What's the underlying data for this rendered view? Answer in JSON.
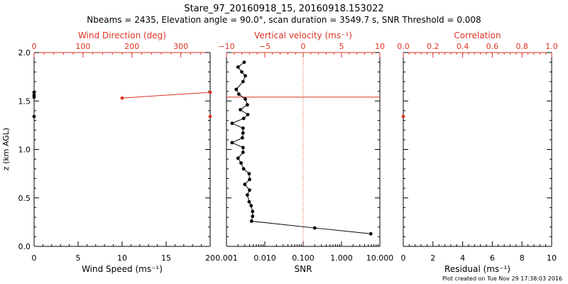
{
  "header": {
    "title": "Stare_97_20160918_15, 20160918.153022",
    "subtitle": "Nbeams = 2435, Elevation angle = 90.0°, scan duration = 3549.7 s, SNR Threshold = 0.008"
  },
  "footer": {
    "credit": "Plot created on Tue Nov 29 17:38:03 2016"
  },
  "colors": {
    "axis": "#000000",
    "accent": "#dd3322",
    "background": "#ffffff"
  },
  "chart_data": [
    {
      "type": "line",
      "title": "Wind Speed / Wind Direction",
      "xlabel": "Wind Speed (ms⁻¹)",
      "xlim": [
        0,
        20
      ],
      "xticks": [
        "0",
        "5",
        "10",
        "15",
        "20"
      ],
      "x2label": "Wind Direction (deg)",
      "x2lim": [
        0,
        360
      ],
      "x2ticks": [
        "0",
        "100",
        "200",
        "300"
      ],
      "ylabel": "z (km AGL)",
      "ylim": [
        0,
        2.0
      ],
      "yticks": [
        "0.0",
        "0.5",
        "1.0",
        "1.5",
        "2.0"
      ],
      "series": [
        {
          "name": "Wind direction",
          "color": "#dd3322",
          "x": [
            180,
            360
          ],
          "y": [
            1.53,
            1.59
          ]
        },
        {
          "name": "Wind direction (edge)",
          "color": "#dd3322",
          "x": [
            360
          ],
          "y": [
            1.34
          ]
        },
        {
          "name": "Wind speed",
          "color": "#000000",
          "x": [
            0,
            0,
            0,
            0
          ],
          "y": [
            1.59,
            1.56,
            1.54,
            1.34
          ]
        }
      ]
    },
    {
      "type": "line",
      "title": "SNR / Vertical velocity",
      "xlabel": "SNR",
      "xscale": "log",
      "xlim": [
        0.001,
        10
      ],
      "xticks": [
        "0.001",
        "0.010",
        "0.100",
        "1.000",
        "10.000"
      ],
      "x2label": "Vertical velocity (ms⁻¹)",
      "x2lim": [
        -10,
        10
      ],
      "x2ticks": [
        "−10",
        "−5",
        "0",
        "5",
        "10"
      ],
      "ylim": [
        0,
        2.0
      ],
      "threshold_height_km": 1.54,
      "zero_velocity_line": 0,
      "series": [
        {
          "name": "SNR",
          "color": "#000000",
          "x": [
            5.8,
            0.2,
            0.0045,
            0.0048,
            0.0048,
            0.0044,
            0.0039,
            0.0035,
            0.004,
            0.003,
            0.004,
            0.0039,
            0.0028,
            0.0024,
            0.002,
            0.0027,
            0.0027,
            0.0014,
            0.0026,
            0.0027,
            0.0027,
            0.0014,
            0.0028,
            0.0036,
            0.0023,
            0.0035,
            0.0031,
            0.0021,
            0.0018,
            0.0027,
            0.0031,
            0.0025,
            0.002,
            0.0029
          ],
          "y": [
            0.13,
            0.19,
            0.26,
            0.31,
            0.36,
            0.42,
            0.46,
            0.53,
            0.58,
            0.64,
            0.69,
            0.75,
            0.8,
            0.86,
            0.91,
            0.97,
            1.02,
            1.07,
            1.12,
            1.17,
            1.22,
            1.27,
            1.32,
            1.36,
            1.41,
            1.46,
            1.52,
            1.57,
            1.62,
            1.7,
            1.76,
            1.8,
            1.85,
            1.9
          ]
        }
      ]
    },
    {
      "type": "line",
      "title": "Residual / Correlation",
      "xlabel": "Residual (ms⁻¹)",
      "xlim": [
        0,
        10
      ],
      "xticks": [
        "0",
        "2",
        "4",
        "6",
        "8",
        "10"
      ],
      "x2label": "Correlation",
      "x2lim": [
        0,
        1.0
      ],
      "x2ticks": [
        "0.0",
        "0.2",
        "0.4",
        "0.6",
        "0.8",
        "1.0"
      ],
      "ylim": [
        0,
        2.0
      ],
      "series": [
        {
          "name": "Correlation",
          "color": "#dd3322",
          "x": [
            0.0
          ],
          "y": [
            1.34
          ]
        }
      ]
    }
  ]
}
